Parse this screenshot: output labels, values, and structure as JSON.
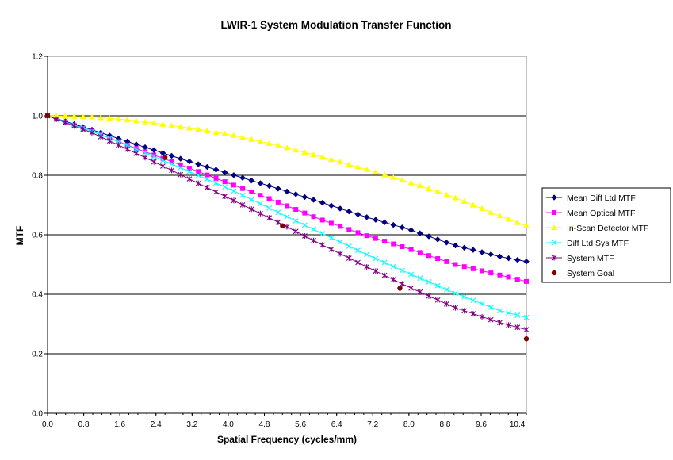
{
  "chart_data": {
    "type": "line",
    "title": "LWIR-1 System Modulation Transfer Function",
    "xlabel": "Spatial Frequency (cycles/mm)",
    "ylabel": "MTF",
    "xlim": [
      0,
      10.6
    ],
    "ylim": [
      0,
      1.2
    ],
    "x_tick_labels": [
      "0.0",
      "0.8",
      "1.6",
      "2.4",
      "3.2",
      "4.0",
      "4.8",
      "5.6",
      "6.4",
      "7.2",
      "8.0",
      "8.8",
      "9.6",
      "10.4"
    ],
    "y_tick_labels": [
      "0.0",
      "0.2",
      "0.4",
      "0.6",
      "0.8",
      "1.0",
      "1.2"
    ],
    "grid": "horizontal major",
    "legend_position": "right",
    "series": [
      {
        "name": "Mean Diff Ltd MTF",
        "color": "#000080",
        "marker": "diamond",
        "x": [
          0,
          1,
          2,
          3,
          4,
          5,
          6,
          7,
          8,
          9,
          10,
          10.6
        ],
        "y": [
          1.0,
          0.952,
          0.902,
          0.853,
          0.806,
          0.76,
          0.712,
          0.662,
          0.618,
          0.565,
          0.527,
          0.51
        ]
      },
      {
        "name": "Mean Optical MTF",
        "color": "#ff00ff",
        "marker": "square",
        "x": [
          0,
          1,
          2,
          3,
          4,
          5,
          6,
          7,
          8,
          9,
          10,
          10.6
        ],
        "y": [
          1.0,
          0.947,
          0.888,
          0.832,
          0.774,
          0.716,
          0.654,
          0.6,
          0.553,
          0.501,
          0.465,
          0.443
        ]
      },
      {
        "name": "In-Scan Detector MTF",
        "color": "#ffff00",
        "marker": "triangle",
        "x": [
          0,
          1,
          2,
          3,
          4,
          5,
          6,
          7,
          8,
          9,
          10,
          10.6
        ],
        "y": [
          1.0,
          0.996,
          0.983,
          0.962,
          0.938,
          0.904,
          0.865,
          0.822,
          0.777,
          0.726,
          0.664,
          0.63
        ]
      },
      {
        "name": "Diff Ltd Sys MTF",
        "color": "#00ffff",
        "marker": "x",
        "x": [
          0,
          1,
          2,
          3,
          4,
          5,
          6,
          7,
          8,
          9,
          10,
          10.6
        ],
        "y": [
          1.0,
          0.947,
          0.886,
          0.822,
          0.756,
          0.683,
          0.61,
          0.538,
          0.47,
          0.405,
          0.345,
          0.322
        ]
      },
      {
        "name": "System MTF",
        "color": "#800080",
        "marker": "star",
        "x": [
          0,
          1,
          2,
          3,
          4,
          5,
          6,
          7,
          8,
          9,
          10,
          10.6
        ],
        "y": [
          1.0,
          0.942,
          0.871,
          0.798,
          0.724,
          0.65,
          0.572,
          0.497,
          0.424,
          0.356,
          0.305,
          0.281
        ]
      },
      {
        "name": "System Goal",
        "color": "#800000",
        "marker": "circle",
        "line": false,
        "x": [
          0,
          2.6,
          5.2,
          7.8,
          10.6
        ],
        "y": [
          1.0,
          0.86,
          0.63,
          0.42,
          0.25
        ]
      }
    ]
  }
}
